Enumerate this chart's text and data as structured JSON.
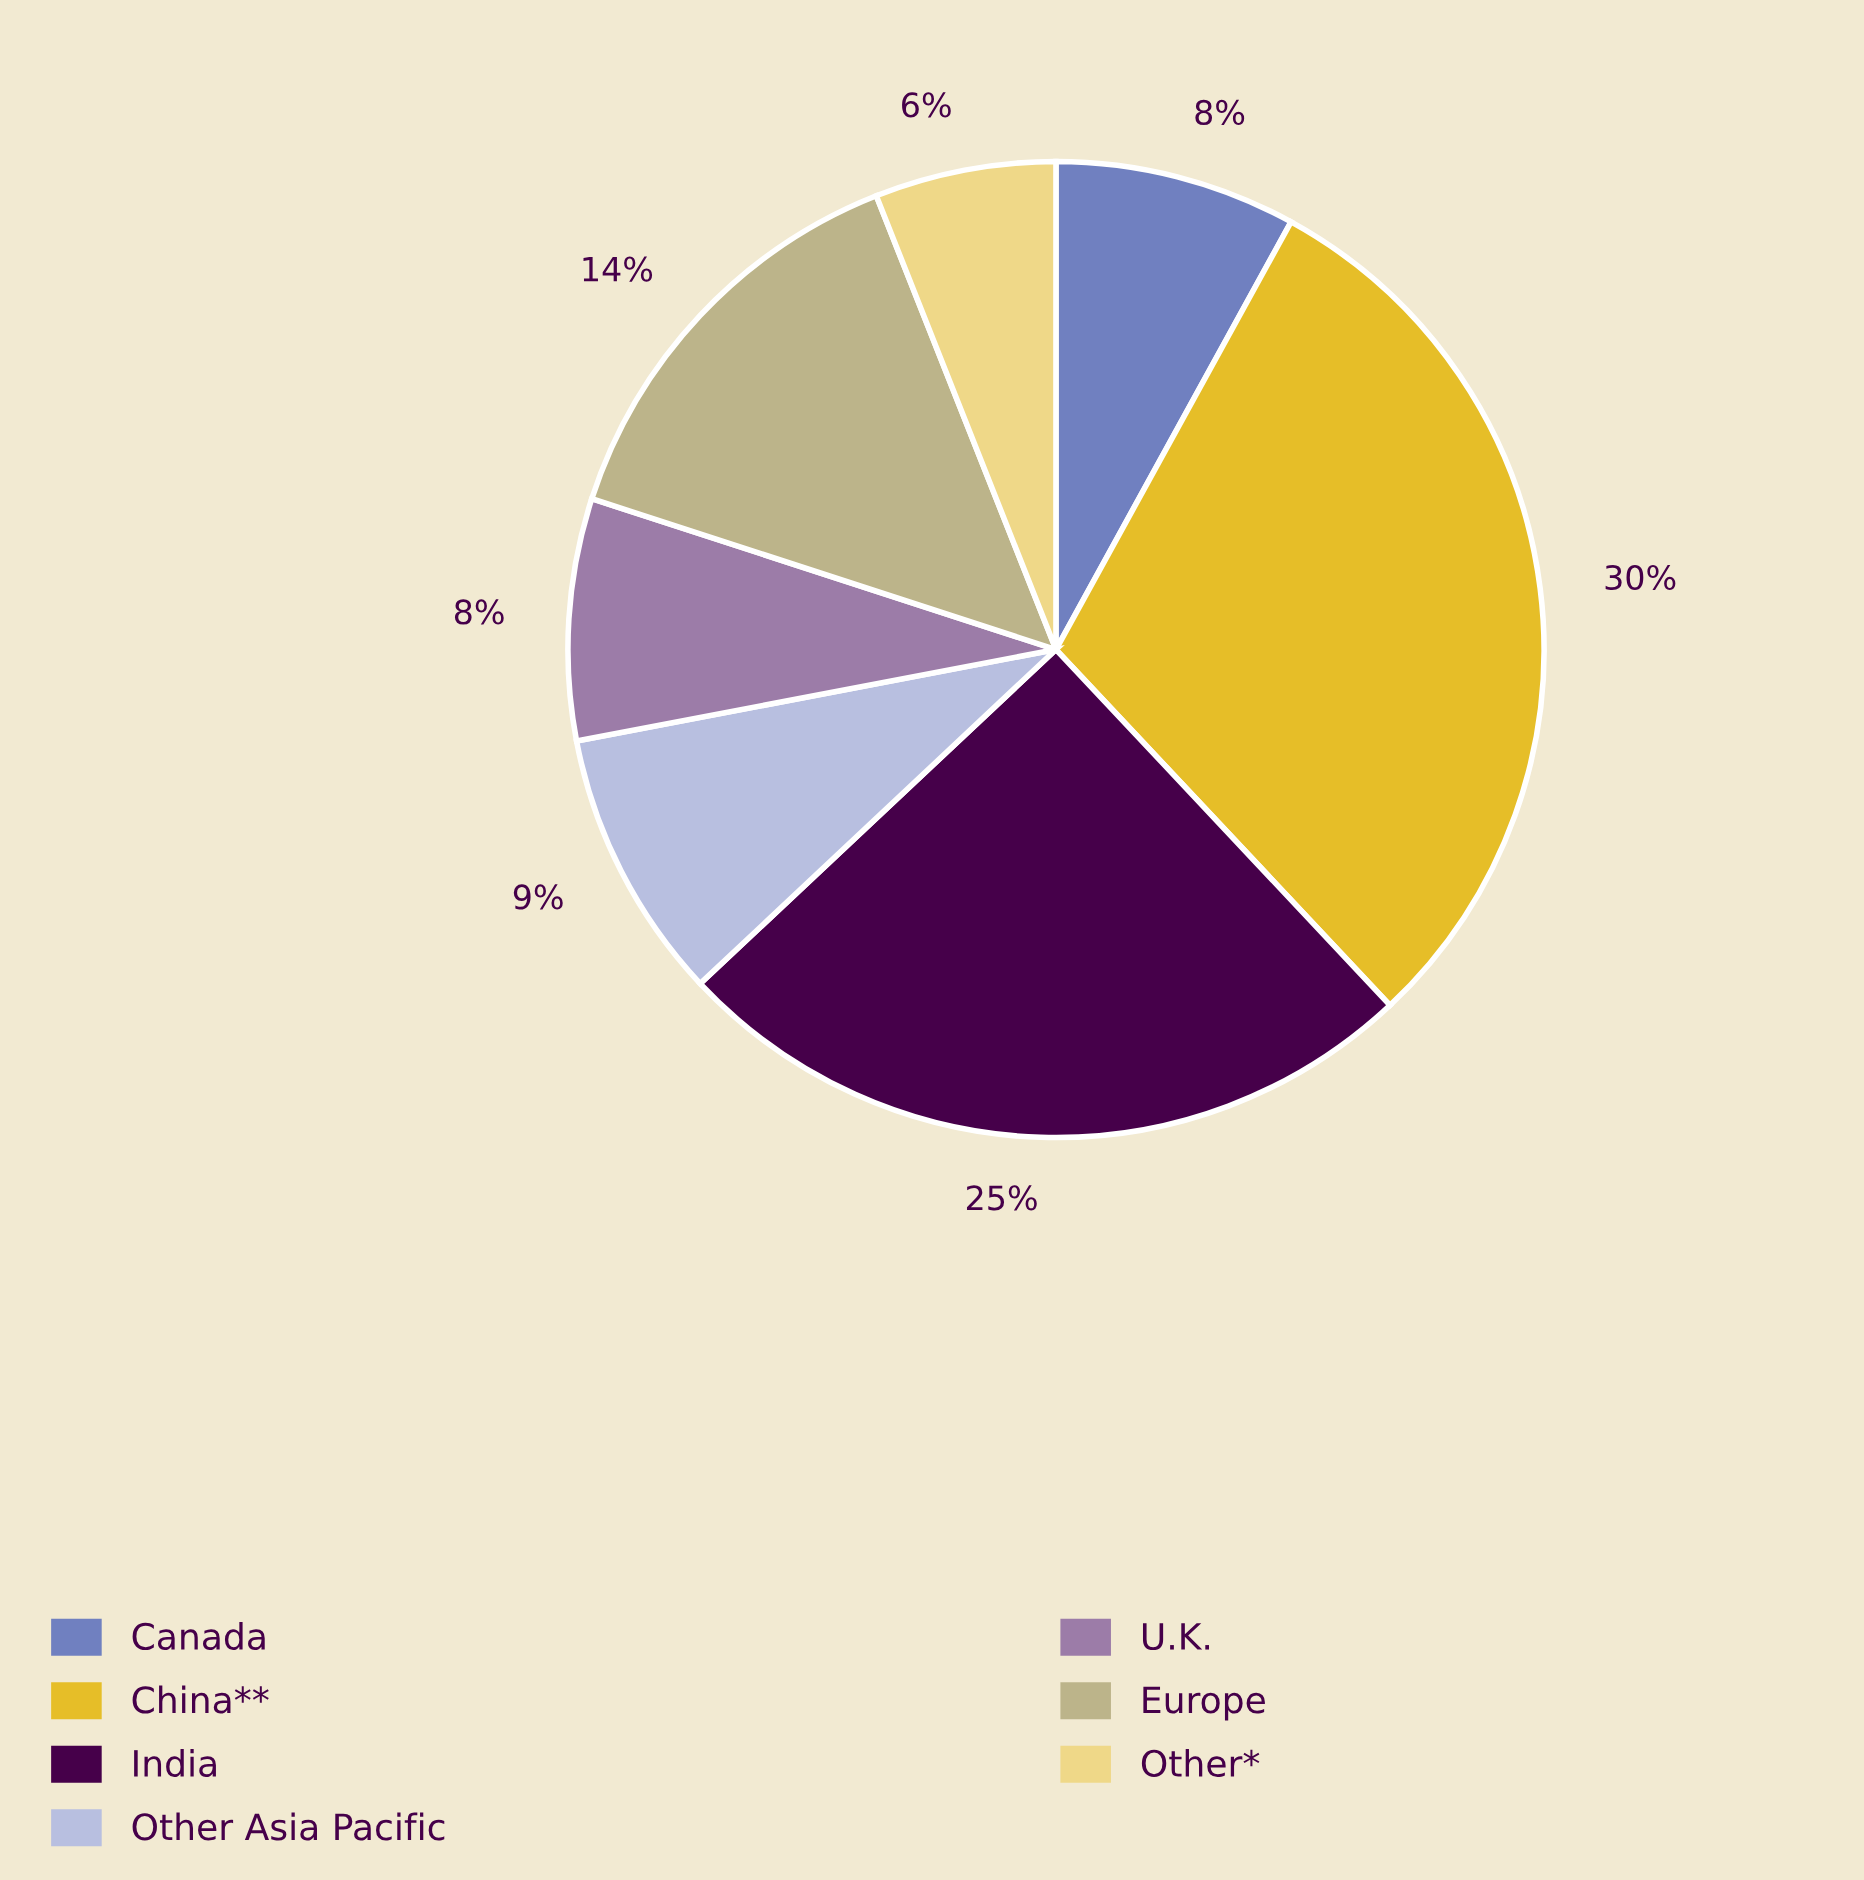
{
  "chart_data": {
    "type": "pie",
    "categories": [
      "Canada",
      "China**",
      "India",
      "Other Asia Pacific",
      "U.K.",
      "Europe",
      "Other*"
    ],
    "values": [
      8,
      30,
      25,
      9,
      8,
      14,
      6
    ],
    "value_labels": [
      "8%",
      "30%",
      "25%",
      "9%",
      "8%",
      "14%",
      "6%"
    ],
    "colors": [
      "#7080c0",
      "#e6be28",
      "#46004a",
      "#b8bfe0",
      "#9c7ca8",
      "#bcb48a",
      "#efd888"
    ],
    "legend": "bottom"
  }
}
